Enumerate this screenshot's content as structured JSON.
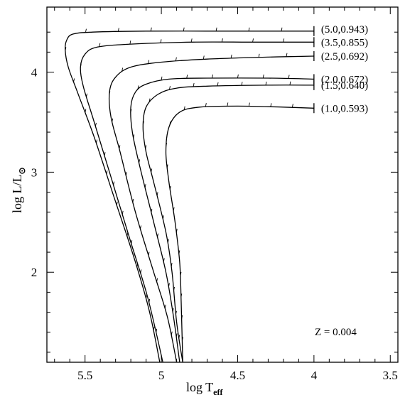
{
  "chart_data": {
    "type": "line",
    "title": "",
    "xlabel": {
      "main": "log T",
      "sub": "eff"
    },
    "ylabel": {
      "prefix": "log L/L",
      "sub": "⊙"
    },
    "xlim": [
      5.75,
      3.45
    ],
    "ylim": [
      1.1,
      4.65
    ],
    "x_ticks": [
      {
        "value": 5.5,
        "label": "5.5"
      },
      {
        "value": 5.0,
        "label": "5"
      },
      {
        "value": 4.5,
        "label": "4.5"
      },
      {
        "value": 4.0,
        "label": "4"
      },
      {
        "value": 3.5,
        "label": "3.5"
      }
    ],
    "y_ticks": [
      {
        "value": 2,
        "label": "2"
      },
      {
        "value": 3,
        "label": "3"
      },
      {
        "value": 4,
        "label": "4"
      }
    ],
    "annotation": "Z = 0.004",
    "grid": false,
    "series": [
      {
        "label": "(5.0,0.943)",
        "points": [
          [
            4.0,
            4.41
          ],
          [
            4.3,
            4.41
          ],
          [
            4.7,
            4.41
          ],
          [
            5.1,
            4.41
          ],
          [
            5.45,
            4.4
          ],
          [
            5.58,
            4.38
          ],
          [
            5.62,
            4.32
          ],
          [
            5.63,
            4.22
          ],
          [
            5.61,
            4.05
          ],
          [
            5.55,
            3.8
          ],
          [
            5.44,
            3.35
          ],
          [
            5.31,
            2.75
          ],
          [
            5.18,
            2.15
          ],
          [
            5.08,
            1.62
          ],
          [
            5.01,
            1.1
          ]
        ]
      },
      {
        "label": "(3.5,0.855)",
        "points": [
          [
            4.0,
            4.3
          ],
          [
            4.4,
            4.3
          ],
          [
            4.8,
            4.3
          ],
          [
            5.2,
            4.28
          ],
          [
            5.42,
            4.25
          ],
          [
            5.5,
            4.18
          ],
          [
            5.53,
            4.05
          ],
          [
            5.51,
            3.85
          ],
          [
            5.44,
            3.5
          ],
          [
            5.32,
            2.9
          ],
          [
            5.2,
            2.3
          ],
          [
            5.09,
            1.75
          ],
          [
            4.99,
            1.1
          ]
        ]
      },
      {
        "label": "(2.5,0.692)",
        "points": [
          [
            4.0,
            4.16
          ],
          [
            4.3,
            4.15
          ],
          [
            4.7,
            4.13
          ],
          [
            5.0,
            4.1
          ],
          [
            5.2,
            4.05
          ],
          [
            5.3,
            3.95
          ],
          [
            5.34,
            3.8
          ],
          [
            5.33,
            3.55
          ],
          [
            5.27,
            3.2
          ],
          [
            5.17,
            2.6
          ],
          [
            5.05,
            2.0
          ],
          [
            4.96,
            1.55
          ],
          [
            4.9,
            1.1
          ]
        ]
      },
      {
        "label": "(2.0,0.672)",
        "points": [
          [
            4.0,
            3.93
          ],
          [
            4.3,
            3.94
          ],
          [
            4.7,
            3.94
          ],
          [
            4.95,
            3.93
          ],
          [
            5.1,
            3.88
          ],
          [
            5.17,
            3.8
          ],
          [
            5.2,
            3.65
          ],
          [
            5.19,
            3.4
          ],
          [
            5.14,
            3.05
          ],
          [
            5.05,
            2.5
          ],
          [
            4.97,
            2.0
          ],
          [
            4.92,
            1.55
          ],
          [
            4.88,
            1.1
          ]
        ]
      },
      {
        "label": "(1.5,0.640)",
        "points": [
          [
            4.0,
            3.87
          ],
          [
            4.3,
            3.87
          ],
          [
            4.7,
            3.86
          ],
          [
            4.9,
            3.84
          ],
          [
            5.02,
            3.78
          ],
          [
            5.1,
            3.65
          ],
          [
            5.12,
            3.45
          ],
          [
            5.1,
            3.2
          ],
          [
            5.05,
            2.9
          ],
          [
            4.97,
            2.4
          ],
          [
            4.93,
            2.0
          ],
          [
            4.9,
            1.5
          ],
          [
            4.86,
            1.1
          ]
        ]
      },
      {
        "label": "(1.0,0.593)",
        "points": [
          [
            4.0,
            3.64
          ],
          [
            4.2,
            3.65
          ],
          [
            4.5,
            3.66
          ],
          [
            4.75,
            3.65
          ],
          [
            4.88,
            3.6
          ],
          [
            4.95,
            3.45
          ],
          [
            4.97,
            3.2
          ],
          [
            4.95,
            2.9
          ],
          [
            4.91,
            2.5
          ],
          [
            4.88,
            2.1
          ],
          [
            4.87,
            1.7
          ],
          [
            4.86,
            1.1
          ]
        ]
      }
    ]
  }
}
